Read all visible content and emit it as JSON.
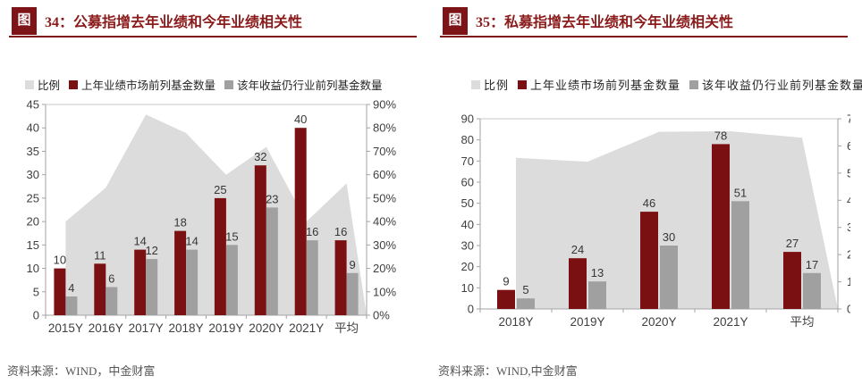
{
  "colors": {
    "accent_red": "#8b1a1a",
    "badge_red": "#7d1418",
    "bar_red": "#7b1013",
    "bar_gray": "#a0a0a0",
    "area_gray": "#dcdcdc",
    "axis_line": "#a3a3a3",
    "label_text": "#404040",
    "source_text": "#555555"
  },
  "charts": [
    {
      "badge_label": "图",
      "title": "34：公募指增去年业绩和今年业绩相关性",
      "source": "资料来源：WIND，中金财富"
    },
    {
      "badge_label": "图",
      "title": "35：私募指增去年业绩和今年业绩相关性",
      "source": "资料来源：WIND,中金财富"
    }
  ],
  "chart_data": [
    {
      "type": "bar",
      "subtype": "dual-axis combo: two bar series (left axis) + ratio area series (right axis)",
      "categories": [
        "2015Y",
        "2016Y",
        "2017Y",
        "2018Y",
        "2019Y",
        "2020Y",
        "2021Y",
        "平均"
      ],
      "series": [
        {
          "name": "比例",
          "render": "area",
          "axis": "right",
          "unit": "%",
          "values": [
            40.0,
            54.5,
            85.7,
            77.8,
            60.0,
            71.9,
            40.0,
            56.3
          ]
        },
        {
          "name": "上年业绩市场前列基金数量",
          "render": "bar",
          "axis": "left",
          "values": [
            10,
            11,
            14,
            18,
            25,
            32,
            40,
            16
          ]
        },
        {
          "name": "该年收益仍行业前列基金数量",
          "render": "bar",
          "axis": "left",
          "values": [
            4,
            6,
            12,
            14,
            15,
            23,
            16,
            9
          ]
        }
      ],
      "left_axis": {
        "min": 0,
        "max": 45,
        "step": 5,
        "suffix": ""
      },
      "right_axis": {
        "min": 0,
        "max": 90,
        "step": 10,
        "suffix": "%"
      },
      "grid": false,
      "legend_position": "top",
      "bar_labels_shown": true
    },
    {
      "type": "bar",
      "subtype": "dual-axis combo: two bar series (left axis) + ratio area series (right axis)",
      "categories": [
        "2018Y",
        "2019Y",
        "2020Y",
        "2021Y",
        "平均"
      ],
      "series": [
        {
          "name": "比例",
          "render": "area",
          "axis": "right",
          "unit": "%",
          "values": [
            55.6,
            54.2,
            65.2,
            65.4,
            63.0
          ]
        },
        {
          "name": "上年业绩市场前列基金数量",
          "render": "bar",
          "axis": "left",
          "values": [
            9,
            24,
            46,
            78,
            27
          ]
        },
        {
          "name": "该年收益仍行业前列基金数量",
          "render": "bar",
          "axis": "left",
          "values": [
            5,
            13,
            30,
            51,
            17
          ]
        }
      ],
      "left_axis": {
        "min": 0,
        "max": 90,
        "step": 10,
        "suffix": ""
      },
      "right_axis": {
        "min": 0,
        "max": 70,
        "step": 10,
        "suffix": "%"
      },
      "grid": false,
      "legend_position": "top",
      "bar_labels_shown": true,
      "note_visible_in_pixels": "right-axis percent labels are clipped by the right edge of the image"
    }
  ]
}
